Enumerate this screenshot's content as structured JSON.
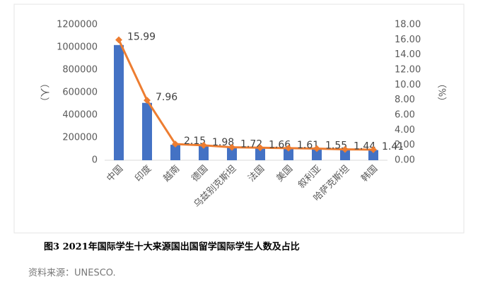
{
  "chart_data": {
    "type": "bar-line",
    "categories": [
      "中国",
      "印度",
      "越南",
      "德国",
      "乌兹别克斯坦",
      "法国",
      "美国",
      "叙利亚",
      "哈萨克斯坦",
      "韩国"
    ],
    "series": [
      {
        "name": "人数",
        "type": "bar",
        "color": "#4472c4",
        "values": [
          1020000,
          508000,
          137000,
          126000,
          110000,
          106000,
          103000,
          99000,
          92000,
          90000
        ]
      },
      {
        "name": "占比",
        "type": "line",
        "axis": "y2",
        "color": "#ed7d31",
        "values": [
          15.99,
          7.96,
          2.15,
          1.98,
          1.72,
          1.66,
          1.61,
          1.55,
          1.44,
          1.41
        ]
      }
    ],
    "ylabel": "（人）",
    "y2label": "（%）",
    "ylim": [
      0,
      1200000
    ],
    "yticks": [
      0,
      200000,
      400000,
      600000,
      800000,
      1000000,
      1200000
    ],
    "y2lim": [
      0,
      18
    ],
    "y2ticks": [
      {
        "value": 0,
        "label": "0.00"
      },
      {
        "value": 2,
        "label": "2.00"
      },
      {
        "value": 4,
        "label": "4.00"
      },
      {
        "value": 6,
        "label": "6.00"
      },
      {
        "value": 8,
        "label": "8.00"
      },
      {
        "value": 10,
        "label": "10.00"
      },
      {
        "value": 12,
        "label": "12.00"
      },
      {
        "value": 14,
        "label": "14.00"
      },
      {
        "value": 16,
        "label": "16.00"
      },
      {
        "value": 18,
        "label": "18.00"
      }
    ],
    "caption": "图3 2021年国际学生十大来源国出国留学国际学生人数及占比",
    "source": "资料来源：UNESCO."
  }
}
